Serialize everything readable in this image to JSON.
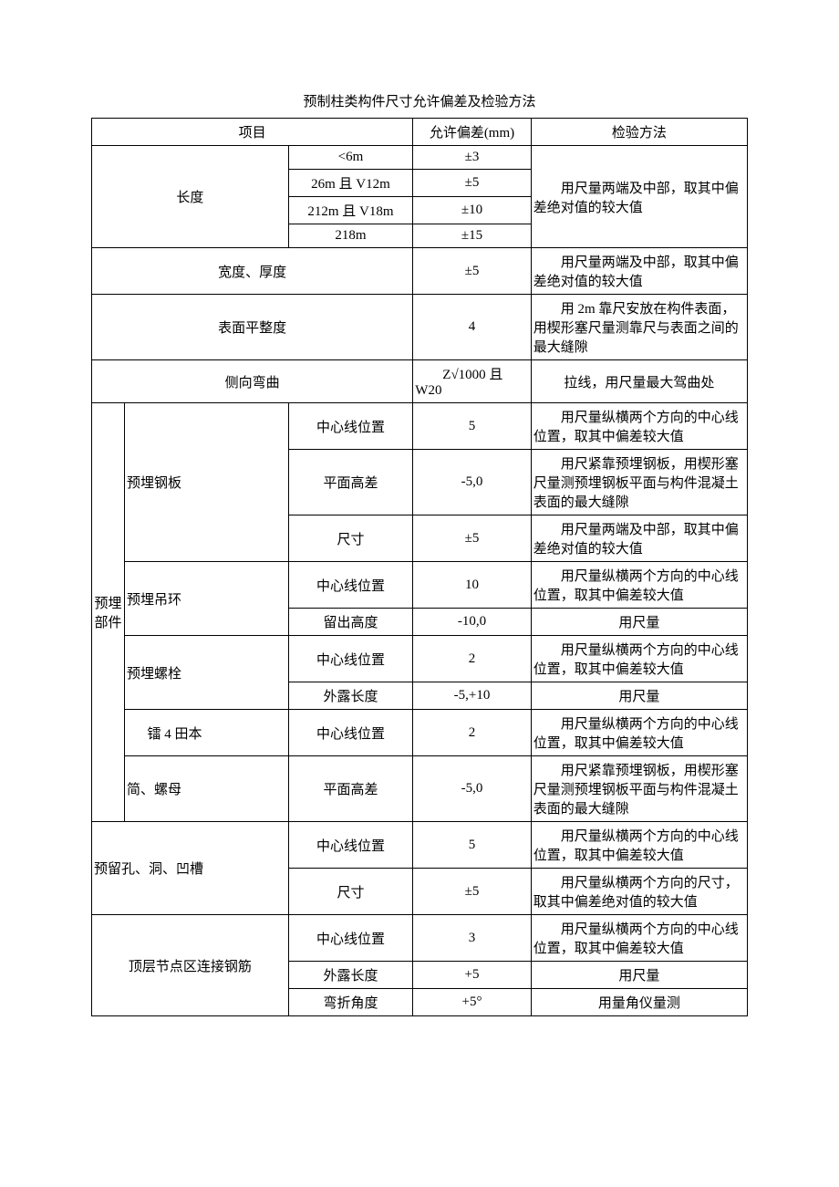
{
  "table": {
    "title": "预制柱类构件尺寸允许偏差及检验方法",
    "header": {
      "item": "项目",
      "tolerance": "允许偏差(mm)",
      "method": "检验方法"
    },
    "length": {
      "label": "长度",
      "r1": {
        "range": "<6m",
        "val": "±3"
      },
      "r2": {
        "range": "26m 且 V12m",
        "val": "±5"
      },
      "r3": {
        "range": "212m 且 V18m",
        "val": "±10"
      },
      "r4": {
        "range": "218m",
        "val": "±15"
      },
      "method": "用尺量两端及中部，取其中偏差绝对值的较大值"
    },
    "width": {
      "label": "宽度、厚度",
      "val": "±5",
      "method": "用尺量两端及中部，取其中偏差绝对值的较大值"
    },
    "flatness": {
      "label": "表面平整度",
      "val": "4",
      "method": "用 2m 靠尺安放在构件表面，用楔形塞尺量测靠尺与表面之间的最大缝隙"
    },
    "bend": {
      "label": "侧向弯曲",
      "val": "Z√1000 且W20",
      "method": "拉线，用尺量最大驾曲处"
    },
    "embed": {
      "group": "预埋部件",
      "plate": {
        "label": "预埋钢板",
        "center_pos": {
          "lbl": "中心线位置",
          "val": "5",
          "method": "用尺量纵横两个方向的中心线位置，取其中偏差较大值"
        },
        "level": {
          "lbl": "平面高差",
          "val": "-5,0",
          "method": "用尺紧靠预埋钢板，用楔形塞尺量测预埋钢板平面与构件混凝土表面的最大缝隙"
        },
        "size": {
          "lbl": "尺寸",
          "val": "±5",
          "method": "用尺量两端及中部，取其中偏差绝对值的较大值"
        }
      },
      "ring": {
        "label": "预埋吊环",
        "center_pos": {
          "lbl": "中心线位置",
          "val": "10",
          "method": "用尺量纵横两个方向的中心线位置，取其中偏差较大值"
        },
        "height": {
          "lbl": "留出高度",
          "val": "-10,0",
          "method": "用尺量"
        }
      },
      "bolt": {
        "label": "预埋螺栓",
        "center_pos": {
          "lbl": "中心线位置",
          "val": "2",
          "method": "用尺量纵横两个方向的中心线位置，取其中偏差较大值"
        },
        "expose": {
          "lbl": "外露长度",
          "val": "-5,+10",
          "method": "用尺量"
        }
      },
      "sleeve_a": {
        "label": "镭 4 田本",
        "center_pos": {
          "lbl": "中心线位置",
          "val": "2",
          "method": "用尺量纵横两个方向的中心线位置，取其中偏差较大值"
        }
      },
      "sleeve_b": {
        "label": "简、螺母",
        "level": {
          "lbl": "平面高差",
          "val": "-5,0",
          "method": "用尺紧靠预埋钢板，用楔形塞尺量测预埋钢板平面与构件混凝土表面的最大缝隙"
        }
      }
    },
    "hole": {
      "label": "预留孔、洞、凹槽",
      "center_pos": {
        "lbl": "中心线位置",
        "val": "5",
        "method": "用尺量纵横两个方向的中心线位置，取其中偏差较大值"
      },
      "size": {
        "lbl": "尺寸",
        "val": "±5",
        "method": "用尺量纵横两个方向的尺寸，取其中偏差绝对值的较大值"
      }
    },
    "rebar": {
      "label": "顶层节点区连接钢筋",
      "center_pos": {
        "lbl": "中心线位置",
        "val": "3",
        "method": "用尺量纵横两个方向的中心线位置，取其中偏差较大值"
      },
      "expose": {
        "lbl": "外露长度",
        "val": "+5",
        "method": "用尺量"
      },
      "angle": {
        "lbl": "弯折角度",
        "val": "+5°",
        "method": "用量角仪量测"
      }
    }
  }
}
